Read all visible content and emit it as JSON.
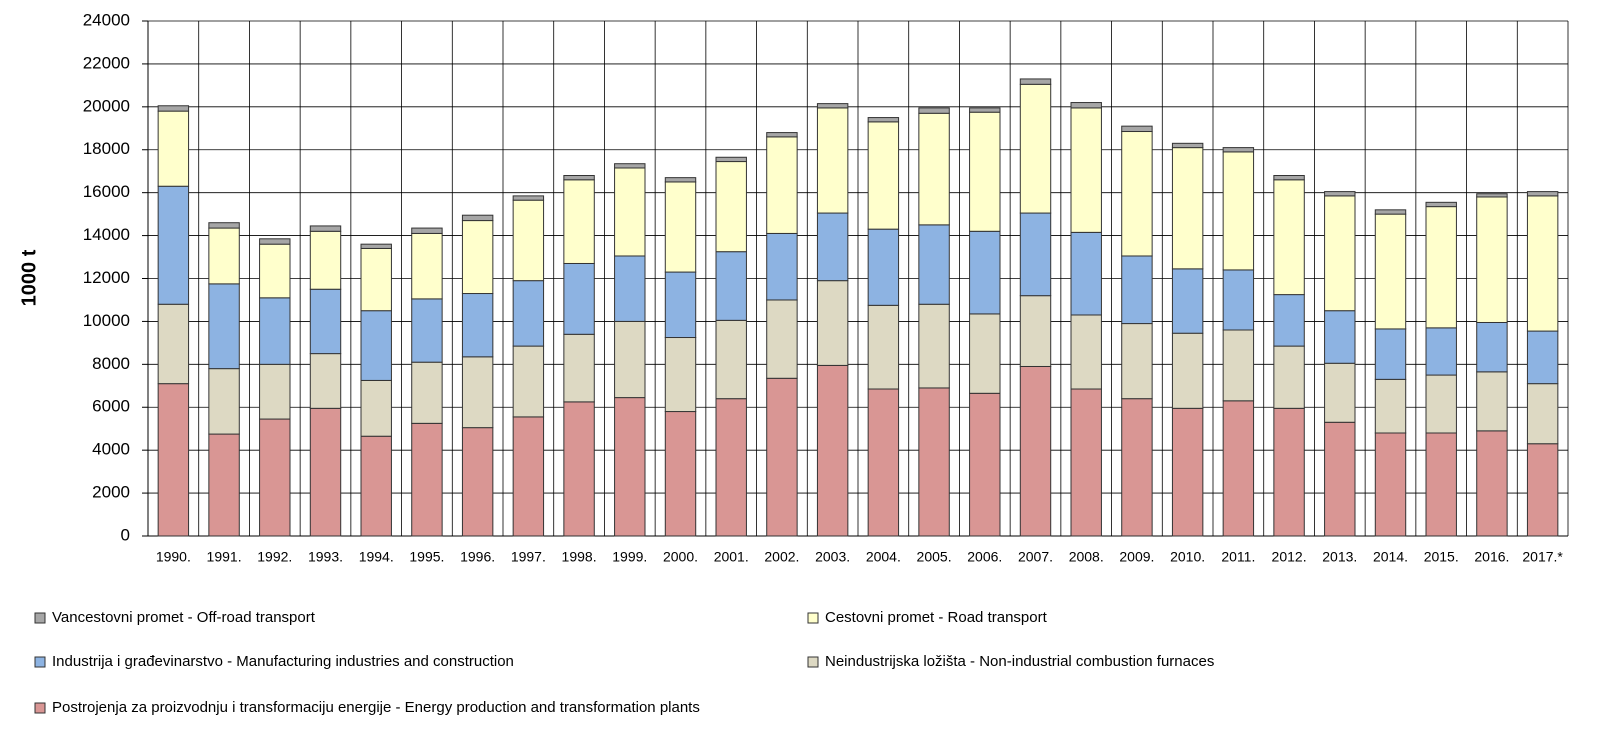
{
  "chart_data": {
    "type": "stacked_bar",
    "y_label": "1000 t",
    "categories": [
      "1990.",
      "1991.",
      "1992.",
      "1993.",
      "1994.",
      "1995.",
      "1996.",
      "1997.",
      "1998.",
      "1999.",
      "2000.",
      "2001.",
      "2002.",
      "2003.",
      "2004.",
      "2005.",
      "2006.",
      "2007.",
      "2008.",
      "2009.",
      "2010.",
      "2011.",
      "2012.",
      "2013.",
      "2014.",
      "2015.",
      "2016.",
      "2017.*"
    ],
    "series": [
      {
        "name": "Postrojenja za proizvodnju i transformaciju energije - Energy production and transformation plants",
        "color": "#d99694",
        "values": [
          7100,
          4750,
          5450,
          5950,
          4650,
          5250,
          5050,
          5550,
          6250,
          6450,
          5800,
          6400,
          7350,
          7950,
          6850,
          6900,
          6650,
          7900,
          6850,
          6400,
          5950,
          6300,
          5950,
          5300,
          4800,
          4800,
          4900,
          4300
        ]
      },
      {
        "name": "Neindustrijska ložišta - Non-industrial combustion furnaces",
        "color": "#ddd9c3",
        "values": [
          3700,
          3050,
          2550,
          2550,
          2600,
          2850,
          3300,
          3300,
          3150,
          3550,
          3450,
          3650,
          3650,
          3950,
          3900,
          3900,
          3700,
          3300,
          3450,
          3500,
          3500,
          3300,
          2900,
          2750,
          2500,
          2700,
          2750,
          2800
        ]
      },
      {
        "name": "Industrija i građevinarstvo - Manufacturing industries and construction",
        "color": "#8db3e2",
        "values": [
          5500,
          3950,
          3100,
          3000,
          3250,
          2950,
          2950,
          3050,
          3300,
          3050,
          3050,
          3200,
          3100,
          3150,
          3550,
          3700,
          3850,
          3850,
          3850,
          3150,
          3000,
          2800,
          2400,
          2450,
          2350,
          2200,
          2300,
          2450
        ]
      },
      {
        "name": "Cestovni promet - Road transport",
        "color": "#ffffcc",
        "values": [
          3500,
          2600,
          2500,
          2700,
          2900,
          3050,
          3400,
          3750,
          3900,
          4100,
          4200,
          4200,
          4500,
          4900,
          5000,
          5200,
          5550,
          6000,
          5800,
          5800,
          5650,
          5500,
          5350,
          5350,
          5350,
          5650,
          5850,
          6300
        ]
      },
      {
        "name": "Vancestovni promet - Off-road transport",
        "color": "#a6a6a6",
        "values": [
          250,
          250,
          250,
          250,
          200,
          250,
          250,
          200,
          200,
          200,
          200,
          200,
          200,
          200,
          200,
          250,
          200,
          250,
          250,
          250,
          200,
          200,
          200,
          200,
          200,
          200,
          150,
          200
        ]
      }
    ],
    "ylim": [
      0,
      24000
    ],
    "yticks": [
      0,
      2000,
      4000,
      6000,
      8000,
      10000,
      12000,
      14000,
      16000,
      18000,
      20000,
      22000,
      24000
    ],
    "grid": true
  }
}
